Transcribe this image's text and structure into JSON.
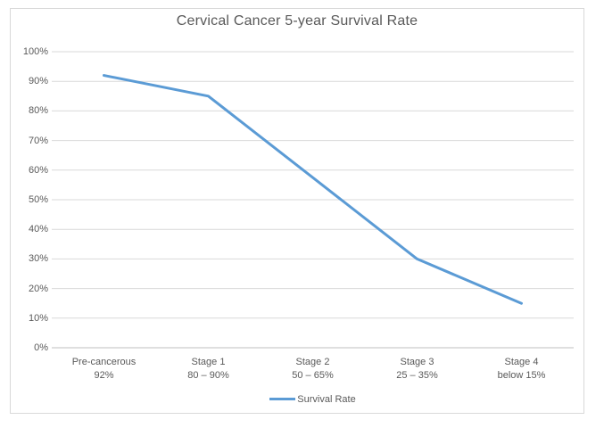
{
  "window": {
    "background_color": "#FFFFFF",
    "frame_border_color": "#D9D9D9"
  },
  "chart_data": {
    "type": "line",
    "title": "Cervical Cancer 5-year Survival Rate",
    "title_color": "#595959",
    "xlabel": "",
    "ylabel": "",
    "categories": [
      {
        "label": "Pre-cancerous",
        "sublabel": "92%"
      },
      {
        "label": "Stage 1",
        "sublabel": "80 – 90%"
      },
      {
        "label": "Stage 2",
        "sublabel": "50 – 65%"
      },
      {
        "label": "Stage 3",
        "sublabel": "25 – 35%"
      },
      {
        "label": "Stage 4",
        "sublabel": "below 15%"
      }
    ],
    "series": [
      {
        "name": "Survival Rate",
        "values": [
          92,
          85,
          57.5,
          30,
          15
        ],
        "color": "#5B9BD5",
        "line_width": 3
      }
    ],
    "ylim": [
      0,
      100
    ],
    "y_ticks": [
      "0%",
      "10%",
      "20%",
      "30%",
      "40%",
      "50%",
      "60%",
      "70%",
      "80%",
      "90%",
      "100%"
    ],
    "grid": true,
    "gridline_color": "#D9D9D9",
    "axis_line_color": "#BFBFBF",
    "tick_label_color": "#595959",
    "legend_position": "bottom"
  }
}
